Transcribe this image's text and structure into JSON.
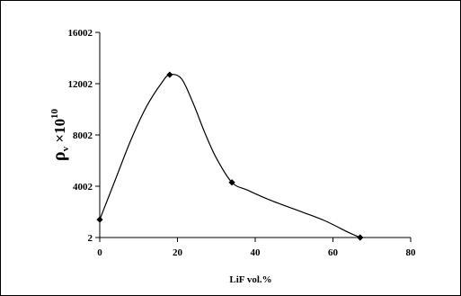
{
  "chart_data": {
    "type": "line",
    "title": "",
    "xlabel": "LiF vol.%",
    "ylabel": {
      "symbol": "ρ",
      "subscript": "v",
      "times": " ×10",
      "exponent": "10"
    },
    "xlim": [
      0,
      80
    ],
    "ylim": [
      2,
      16002
    ],
    "x_ticks": [
      0,
      20,
      40,
      60,
      80
    ],
    "y_ticks": [
      2,
      4002,
      8002,
      12002,
      16002
    ],
    "grid": false,
    "series": [
      {
        "markers": [
          {
            "x": 0,
            "y": 1400
          },
          {
            "x": 18,
            "y": 12700
          },
          {
            "x": 34,
            "y": 4300
          },
          {
            "x": 67,
            "y": 2
          }
        ],
        "curve": [
          {
            "x": 0,
            "y": 1400
          },
          {
            "x": 4,
            "y": 4500
          },
          {
            "x": 8,
            "y": 7600
          },
          {
            "x": 12,
            "y": 10200
          },
          {
            "x": 16,
            "y": 12100
          },
          {
            "x": 18,
            "y": 12700
          },
          {
            "x": 21,
            "y": 12400
          },
          {
            "x": 24,
            "y": 10500
          },
          {
            "x": 27,
            "y": 8200
          },
          {
            "x": 30,
            "y": 6200
          },
          {
            "x": 34,
            "y": 4300
          },
          {
            "x": 38,
            "y": 3700
          },
          {
            "x": 44,
            "y": 2900
          },
          {
            "x": 52,
            "y": 2000
          },
          {
            "x": 58,
            "y": 1300
          },
          {
            "x": 64,
            "y": 400
          },
          {
            "x": 67,
            "y": 2
          }
        ]
      }
    ]
  }
}
